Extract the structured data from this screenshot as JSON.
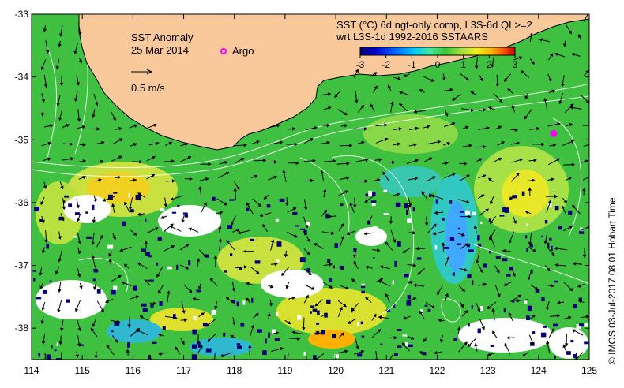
{
  "map": {
    "title": "SST Anomaly",
    "date": "25 Mar 2014",
    "legend_argo": "Argo",
    "vector_scale_label": "0.5 m/s",
    "product_line1": "SST (°C) 6d ngt-only comp, L3S-6d QL>=2",
    "product_line2": "wrt L3S-1d 1992-2016 SSTAARS",
    "credit": "© IMOS 03-Jul-2017 08:01 Hobart Time"
  },
  "axes": {
    "x_ticks": [
      "114",
      "115",
      "116",
      "117",
      "118",
      "119",
      "120",
      "121",
      "122",
      "123",
      "124",
      "125"
    ],
    "y_ticks": [
      "-33",
      "-34",
      "-35",
      "-36",
      "-37",
      "-38"
    ]
  },
  "colorbar": {
    "ticks": [
      "-3",
      "-2",
      "-1",
      "0",
      "1",
      "2",
      "3"
    ],
    "colors": [
      "#00007a",
      "#0000d0",
      "#0060ff",
      "#00c8ff",
      "#40e8a0",
      "#38c838",
      "#a0e040",
      "#f0f020",
      "#ffb000",
      "#ff5000",
      "#c00000"
    ]
  },
  "colors": {
    "land": "#f9c99c",
    "argo_marker": "#ff00ff",
    "ocean_base": "#40c040"
  },
  "argo_floats": [
    {
      "lon": 124.3,
      "lat": -34.9
    }
  ]
}
